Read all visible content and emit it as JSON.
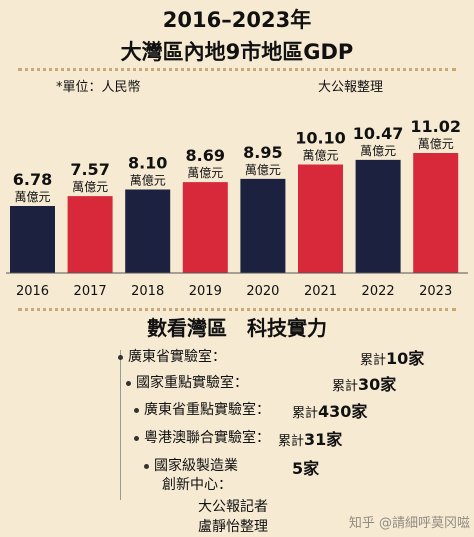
{
  "header": {
    "title_line1": "2016–2023年",
    "title_line2": "大灣區內地9市地區GDP",
    "unit_note": "*單位：人民幣",
    "source_note": "大公報整理"
  },
  "chart_data": {
    "type": "bar",
    "title": "大灣區內地9市地區GDP",
    "categories": [
      "2016",
      "2017",
      "2018",
      "2019",
      "2020",
      "2021",
      "2022",
      "2023"
    ],
    "values": [
      6.78,
      7.57,
      8.1,
      8.69,
      8.95,
      10.1,
      10.47,
      11.02
    ],
    "value_labels": [
      "6.78",
      "7.57",
      "8.10",
      "8.69",
      "8.95",
      "10.10",
      "10.47",
      "11.02"
    ],
    "value_unit": "萬億元",
    "bar_colors": [
      "#1c2140",
      "#d7293a",
      "#1c2140",
      "#d7293a",
      "#1c2140",
      "#d7293a",
      "#1c2140",
      "#d7293a"
    ],
    "ylim": [
      0,
      12
    ],
    "grid": false
  },
  "labs": {
    "section_title": "數看灣區　科技實力",
    "items": [
      {
        "label": "廣東省實驗室：",
        "count_prefix": "累計",
        "count": "10家"
      },
      {
        "label": "國家重點實驗室：",
        "count_prefix": "累計",
        "count": "30家"
      },
      {
        "label": "廣東省重點實驗室：",
        "count_prefix": "累計",
        "count": "430家"
      },
      {
        "label": "粵港澳聯合實驗室：",
        "count_prefix": "累計",
        "count": "31家"
      },
      {
        "label": "國家級製造業",
        "label2": "創新中心：",
        "count_prefix": "",
        "count": "5家"
      }
    ]
  },
  "credits": {
    "line1": "大公報記者",
    "line2": "盧靜怡整理"
  },
  "watermark": "知乎 @請細呼莫冈嗞",
  "colors": {
    "navy": "#1c2140",
    "red": "#d7293a",
    "background": "#f6ead3"
  }
}
